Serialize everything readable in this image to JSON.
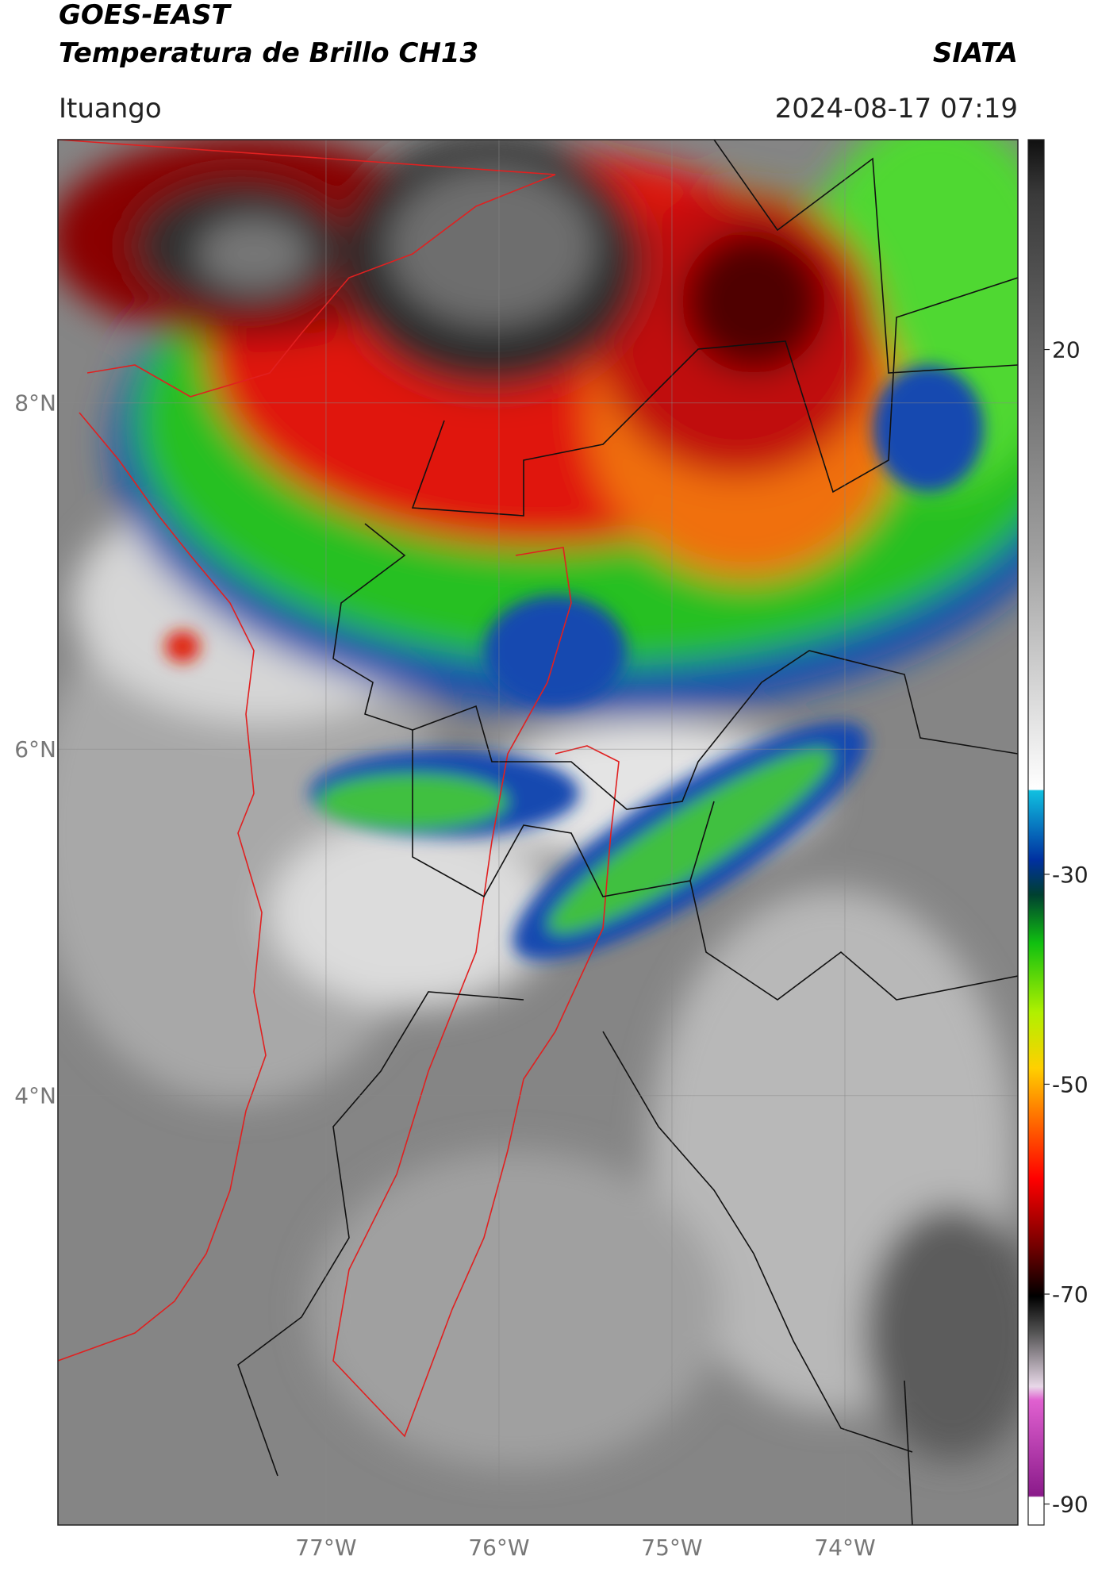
{
  "header": {
    "title": "GOES-EAST",
    "subtitle": "Temperatura de Brillo CH13",
    "brand": "SIATA",
    "location": "Ituango",
    "datetime": "2024-08-17 07:19"
  },
  "map": {
    "xlim": [
      -78.55,
      -73.0
    ],
    "ylim": [
      1.52,
      9.52
    ],
    "xticks": [
      {
        "value": -77,
        "label": "77°W"
      },
      {
        "value": -76,
        "label": "76°W"
      },
      {
        "value": -75,
        "label": "75°W"
      },
      {
        "value": -74,
        "label": "74°W"
      }
    ],
    "yticks": [
      {
        "value": 8,
        "label": "8°N"
      },
      {
        "value": 6,
        "label": "6°N"
      },
      {
        "value": 4,
        "label": "4°N"
      }
    ]
  },
  "colorbar": {
    "lim": [
      -92,
      40
    ],
    "ticks": [
      20,
      -30,
      -50,
      -70,
      -90
    ]
  }
}
